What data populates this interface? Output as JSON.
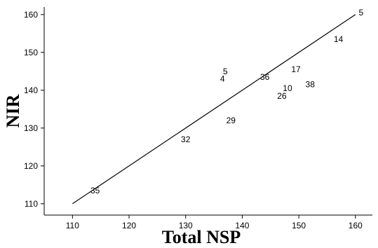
{
  "chart_data": {
    "type": "scatter",
    "xlabel": "Total NSP",
    "ylabel": "NIR",
    "xlim": [
      105,
      163
    ],
    "ylim": [
      107,
      162
    ],
    "x_ticks": [
      110,
      120,
      130,
      140,
      150,
      160
    ],
    "y_ticks": [
      110,
      120,
      130,
      140,
      150,
      160
    ],
    "grid": false,
    "points": [
      {
        "label": "5",
        "x": 161,
        "y": 160.5
      },
      {
        "label": "14",
        "x": 157,
        "y": 153.5
      },
      {
        "label": "5",
        "x": 137,
        "y": 145
      },
      {
        "label": "4",
        "x": 136.5,
        "y": 143
      },
      {
        "label": "36",
        "x": 144,
        "y": 143.5
      },
      {
        "label": "17",
        "x": 149.5,
        "y": 145.5
      },
      {
        "label": "10",
        "x": 148,
        "y": 140.5
      },
      {
        "label": "38",
        "x": 152,
        "y": 141.5
      },
      {
        "label": "26",
        "x": 147,
        "y": 138.5
      },
      {
        "label": "29",
        "x": 138,
        "y": 132
      },
      {
        "label": "32",
        "x": 130,
        "y": 127
      },
      {
        "label": "35",
        "x": 114,
        "y": 113.5
      }
    ],
    "line": {
      "x": [
        110,
        160
      ],
      "y": [
        110,
        160
      ]
    }
  }
}
